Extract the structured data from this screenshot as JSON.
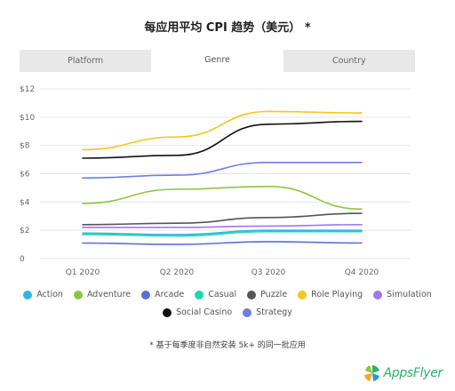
{
  "title": "每应用平均 CPI 趋势（美元） *",
  "tabs": [
    {
      "label": "Platform",
      "active": false
    },
    {
      "label": "Genre",
      "active": true
    },
    {
      "label": "Country",
      "active": false
    }
  ],
  "footnote": "* 基于每季度非自然安装 5k+ 的同一批应用",
  "logo": {
    "text": "AppsFlyer",
    "color": "#25b46a"
  },
  "chart_data": {
    "type": "line",
    "title": "每应用平均 CPI 趋势（美元） *",
    "x": [
      "Q1 2020",
      "Q2 2020",
      "Q3 2020",
      "Q4 2020"
    ],
    "ylim": [
      0,
      12
    ],
    "yticks": [
      "0",
      "$2",
      "$4",
      "$6",
      "$8",
      "$10",
      "$12"
    ],
    "ytick_values": [
      0,
      2,
      4,
      6,
      8,
      10,
      12
    ],
    "grid": true,
    "legend_position": "bottom",
    "series": [
      {
        "name": "Action",
        "color": "#31b5e8",
        "values": [
          1.8,
          1.7,
          2.0,
          2.0
        ]
      },
      {
        "name": "Adventure",
        "color": "#8dc63f",
        "values": [
          3.9,
          4.9,
          5.1,
          3.5
        ]
      },
      {
        "name": "Arcade",
        "color": "#5a6fd6",
        "values": [
          1.1,
          1.0,
          1.2,
          1.1
        ]
      },
      {
        "name": "Casual",
        "color": "#1fd6b1",
        "values": [
          1.7,
          1.6,
          1.9,
          1.9
        ]
      },
      {
        "name": "Puzzle",
        "color": "#555555",
        "values": [
          2.4,
          2.5,
          2.9,
          3.2
        ]
      },
      {
        "name": "Role Playing",
        "color": "#f5c518",
        "values": [
          7.7,
          8.6,
          10.4,
          10.3
        ]
      },
      {
        "name": "Simulation",
        "color": "#a675e8",
        "values": [
          2.2,
          2.2,
          2.3,
          2.4
        ]
      },
      {
        "name": "Social Casino",
        "color": "#111111",
        "values": [
          7.1,
          7.3,
          9.5,
          9.7
        ]
      },
      {
        "name": "Strategy",
        "color": "#6d7fe0",
        "values": [
          5.7,
          5.9,
          6.8,
          6.8
        ]
      }
    ],
    "legend_rows": [
      7,
      2
    ]
  }
}
